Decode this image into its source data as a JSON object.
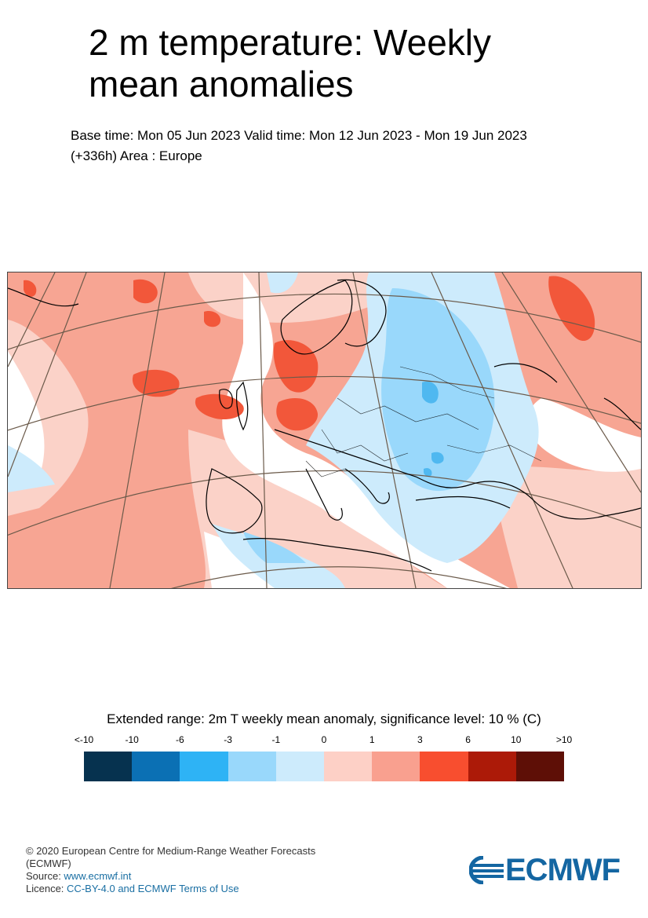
{
  "title": "2 m temperature: Weekly mean anomalies",
  "subtitle_line1": "Base time: Mon 05 Jun 2023 Valid time: Mon 12 Jun 2023 - Mon 19 Jun 2023",
  "subtitle_line2": "(+336h) Area : Europe",
  "legend": {
    "title": "Extended range: 2m T weekly mean anomaly, significance level: 10 % (C)",
    "labels": [
      "<-10",
      "-10",
      "-6",
      "-3",
      "-1",
      "0",
      "1",
      "3",
      "6",
      "10",
      ">10"
    ],
    "colors": [
      "#06324f",
      "#0b70b4",
      "#2eb3f5",
      "#99d8fb",
      "#cdebfc",
      "#fdd0c6",
      "#f9a08f",
      "#f84e2f",
      "#ac1a08",
      "#5e0f06"
    ]
  },
  "map_colors": {
    "warm_light": "#fbd2c8",
    "warm_medium": "#f7a593",
    "warm_strong": "#f2573a",
    "neutral": "#ffffff",
    "cool_light": "#cdebfc",
    "cool_medium": "#99d8fb",
    "cool_strong": "#4fb8f0",
    "coastline": "#000000",
    "graticule": "#6b5a4a"
  },
  "footer": {
    "copyright": "© 2020 European Centre for Medium-Range Weather Forecasts",
    "org": "(ECMWF)",
    "source_label": "Source: ",
    "source_link": "www.ecmwf.int",
    "licence_label": "Licence: ",
    "licence_link": "CC-BY-4.0 and ECMWF Terms of Use"
  },
  "logo_text": "ECMWF"
}
